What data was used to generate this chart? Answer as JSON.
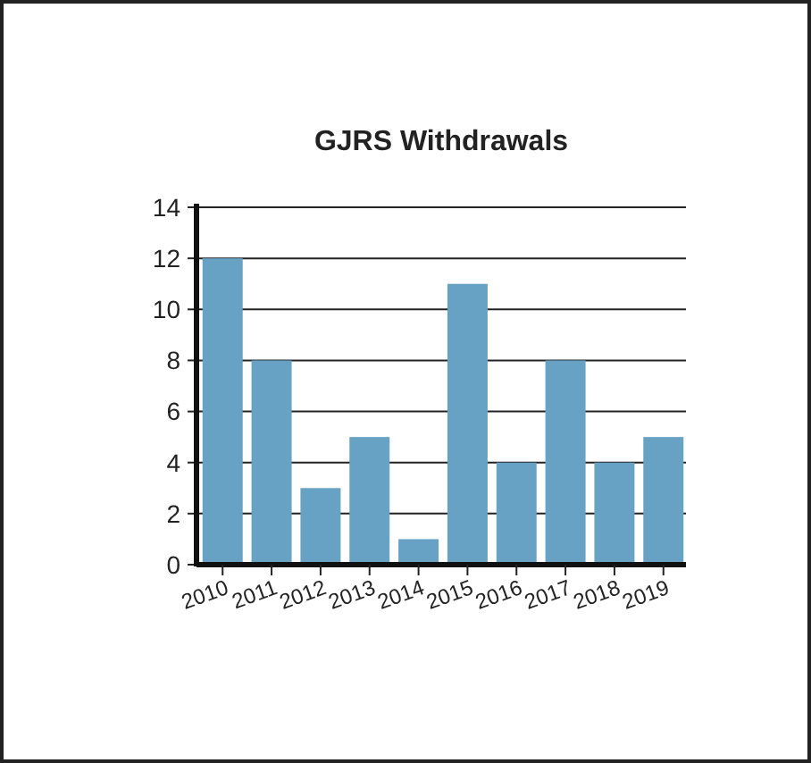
{
  "chart_data": {
    "type": "bar",
    "title": "GJRS Withdrawals",
    "categories": [
      "2010",
      "2011",
      "2012",
      "2013",
      "2014",
      "2015",
      "2016",
      "2017",
      "2018",
      "2019"
    ],
    "values": [
      12,
      8,
      3,
      5,
      1,
      11,
      4,
      8,
      4,
      5
    ],
    "color": "#67a2c5",
    "ylim": [
      0,
      14
    ],
    "yticks": [
      0,
      2,
      4,
      6,
      8,
      10,
      12,
      14
    ],
    "grid": "y"
  }
}
